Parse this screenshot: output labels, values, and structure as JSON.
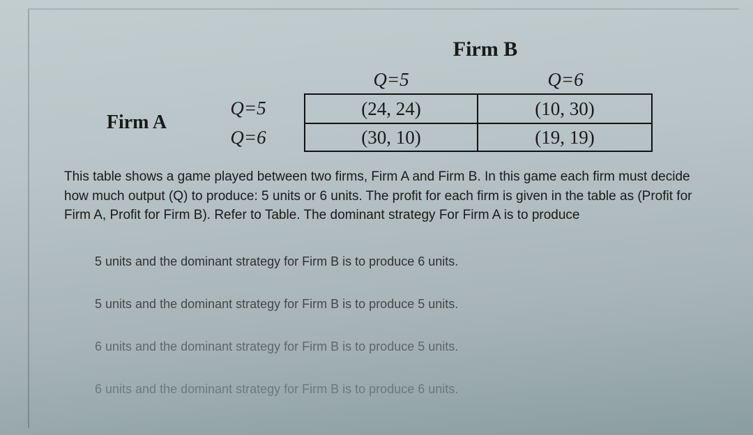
{
  "labels": {
    "firmA": "Firm A",
    "firmB": "Firm B"
  },
  "payoff_matrix": {
    "type": "table",
    "row_player": "Firm A",
    "col_player": "Firm B",
    "row_strategies": [
      "Q=5",
      "Q=6"
    ],
    "col_strategies": [
      "Q=5",
      "Q=6"
    ],
    "cells": {
      "r0c0": "(24, 24)",
      "r0c1": "(10, 30)",
      "r1c0": "(30, 10)",
      "r1c1": "(19, 19)"
    },
    "border_color": "#111111",
    "font_family": "Times New Roman",
    "cell_fontsize": 27,
    "label_fontsize": 28
  },
  "prompt_text": "This table shows a game played between two firms, Firm A and Firm B. In this game each firm must decide how much output (Q) to produce: 5 units or 6 units. The profit for each firm is given in the table as (Profit for Firm A, Profit for Firm B).  Refer to Table. The dominant strategy For Firm A is to produce",
  "options": [
    "5 units and the dominant strategy for Firm B is to produce 6 units.",
    "5 units and the dominant strategy for Firm B is to produce 5 units.",
    "6 units and the dominant strategy for Firm B is to produce 5 units.",
    "6 units and the dominant strategy for Firm B is to produce 6 units."
  ],
  "styling": {
    "background_gradient": [
      "#c2cdd0",
      "#8a9da0"
    ],
    "prompt_fontsize": 19,
    "option_fontsize": 18,
    "text_color": "#1a1a1a"
  }
}
